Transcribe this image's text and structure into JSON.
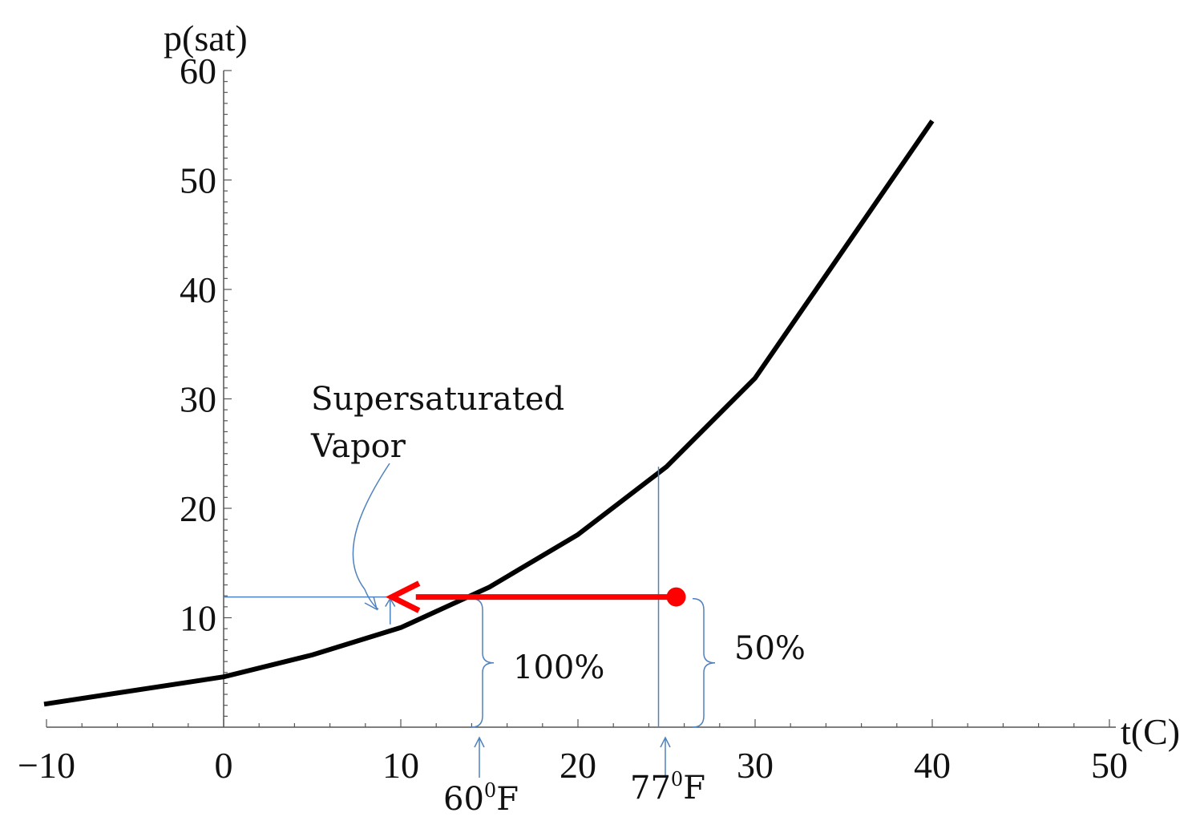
{
  "chart_data": {
    "type": "line",
    "xlabel": "t(C)",
    "ylabel": "p(sat)",
    "xlim": [
      -10,
      50
    ],
    "ylim": [
      0,
      60
    ],
    "x_ticks": [
      -10,
      0,
      10,
      20,
      30,
      40,
      50
    ],
    "x_tick_labels": [
      "−10",
      "0",
      "10",
      "20",
      "30",
      "40",
      "50"
    ],
    "y_ticks": [
      10,
      20,
      30,
      40,
      50,
      60
    ],
    "y_tick_labels": [
      "10",
      "20",
      "30",
      "40",
      "50",
      "60"
    ],
    "grid": false,
    "series": [
      {
        "color": "#000000",
        "x": [
          -10,
          0,
          5,
          10,
          15,
          20,
          25,
          30,
          40
        ],
        "y": [
          2.1,
          4.6,
          6.6,
          9.1,
          12.8,
          17.6,
          23.8,
          31.9,
          55.4
        ]
      }
    ],
    "annotations": {
      "supersaturated_line1": "Supersaturated",
      "supersaturated_line2": "Vapor",
      "pct_100": "100%",
      "pct_50": "50%",
      "temp_60f": {
        "num": "60",
        "sup": "0",
        "unit": "F"
      },
      "temp_77f": {
        "num": "77",
        "sup": "0",
        "unit": "F"
      }
    },
    "process": {
      "color": "#ff0000",
      "start": {
        "x": 25,
        "y": 11.9
      },
      "end": {
        "x": 9.4,
        "y": 11.9
      }
    },
    "markers": {
      "color": "#4f81bd",
      "dew_point_x": 14.4,
      "state_x": 25,
      "state_sat_y": 23.8,
      "state_y": 11.9,
      "supersat_x": 9.4,
      "supersat_sat_y": 9.1
    }
  }
}
